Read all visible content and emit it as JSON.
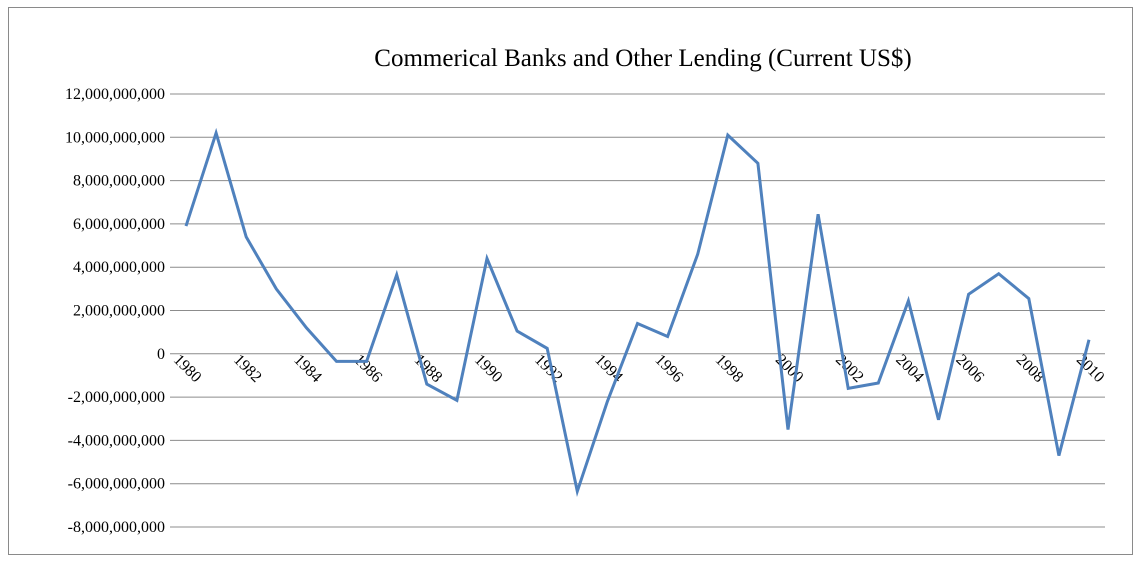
{
  "chart_data": {
    "type": "line",
    "title": "Commerical Banks and Other Lending (Current US$)",
    "xlabel": "",
    "ylabel": "",
    "ylim": [
      -8000000000,
      12000000000
    ],
    "yticks": [
      12000000000,
      10000000000,
      8000000000,
      6000000000,
      4000000000,
      2000000000,
      0,
      -2000000000,
      -4000000000,
      -6000000000,
      -8000000000
    ],
    "ytick_labels": [
      "12,000,000,000",
      "10,000,000,000",
      "8,000,000,000",
      "6,000,000,000",
      "4,000,000,000",
      "2,000,000,000",
      "0",
      "-2,000,000,000",
      "-4,000,000,000",
      "-6,000,000,000",
      "-8,000,000,000"
    ],
    "xtick_labels": [
      "1980",
      "1982",
      "1984",
      "1986",
      "1988",
      "1990",
      "1992",
      "1994",
      "1996",
      "1998",
      "2000",
      "2002",
      "2004",
      "2006",
      "2008",
      "2010"
    ],
    "grid": true,
    "legend": "none",
    "line_color": "#4f81bd",
    "x": [
      1980,
      1981,
      1982,
      1983,
      1984,
      1985,
      1986,
      1987,
      1988,
      1989,
      1990,
      1991,
      1992,
      1993,
      1994,
      1995,
      1996,
      1997,
      1998,
      1999,
      2000,
      2001,
      2002,
      2003,
      2004,
      2005,
      2006,
      2007,
      2008,
      2009,
      2010
    ],
    "values": [
      5900000000,
      10200000000,
      5400000000,
      3000000000,
      1200000000,
      -350000000,
      -350000000,
      3650000000,
      -1400000000,
      -2150000000,
      4400000000,
      1050000000,
      250000000,
      -6350000000,
      -2200000000,
      1400000000,
      800000000,
      4600000000,
      10100000000,
      8800000000,
      -3500000000,
      6450000000,
      -1600000000,
      -1350000000,
      2450000000,
      -3050000000,
      2750000000,
      3700000000,
      2550000000,
      -4700000000,
      650000000
    ]
  }
}
